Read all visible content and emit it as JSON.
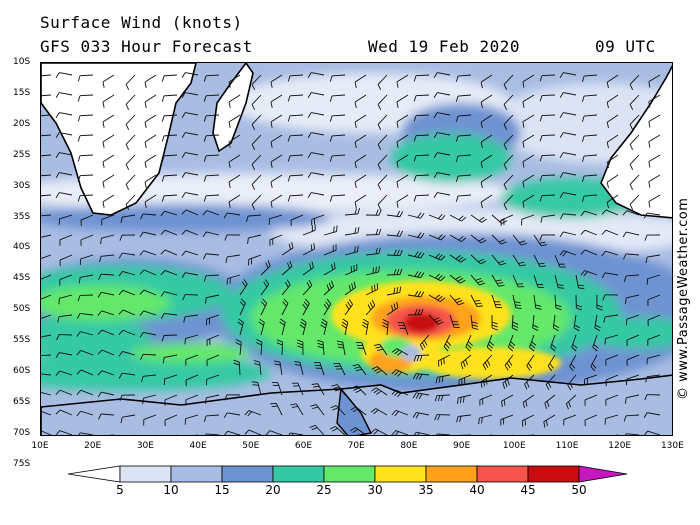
{
  "header": {
    "title": "Surface Wind (knots)",
    "forecast": "GFS 033 Hour Forecast",
    "date": "Wed 19 Feb 2020",
    "time": "09 UTC"
  },
  "credit": "© www.PassageWeather.com",
  "latitude_labels": [
    "10S",
    "15S",
    "20S",
    "25S",
    "30S",
    "35S",
    "40S",
    "45S",
    "50S",
    "55S",
    "60S",
    "65S",
    "70S",
    "75S"
  ],
  "longitude_labels": [
    "10E",
    "20E",
    "30E",
    "40E",
    "50E",
    "60E",
    "70E",
    "80E",
    "90E",
    "100E",
    "110E",
    "120E",
    "130E"
  ],
  "colorbar": {
    "labels": [
      "5",
      "10",
      "15",
      "20",
      "25",
      "30",
      "35",
      "40",
      "45",
      "50"
    ],
    "colors": [
      "#ffffff",
      "#dce4f4",
      "#a9bde3",
      "#6e93d2",
      "#34c9a4",
      "#63e86a",
      "#ffe21c",
      "#ffa21c",
      "#f5544a",
      "#c80d10",
      "#c717c0"
    ]
  },
  "map_colors": {
    "land": "#ffffff",
    "coast": "#000000",
    "barb": "#111111"
  }
}
